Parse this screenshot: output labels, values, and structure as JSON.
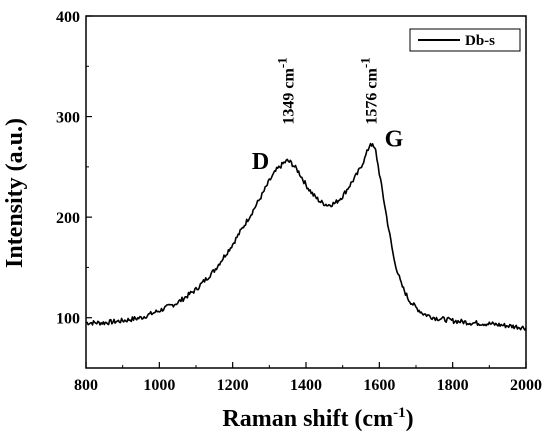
{
  "chart_data": {
    "type": "line",
    "title": "",
    "xlabel": "Raman shift (cm",
    "xlabel_sup": "-1",
    "xlabel_close": ")",
    "ylabel": "Intensity (a.u.)",
    "xlim": [
      800,
      2000
    ],
    "ylim": [
      50,
      400
    ],
    "x_ticks": [
      800,
      1000,
      1200,
      1400,
      1600,
      1800,
      2000
    ],
    "y_ticks": [
      100,
      200,
      300,
      400
    ],
    "x_tick_labels": [
      "800",
      "1000",
      "1200",
      "1400",
      "1600",
      "1800",
      "2000"
    ],
    "y_tick_labels": [
      "100",
      "200",
      "300",
      "400"
    ],
    "grid": false,
    "legend_position": "top-right",
    "line_color": "#000000",
    "series": [
      {
        "name": "Db-s",
        "x": [
          800,
          850,
          900,
          950,
          1000,
          1050,
          1100,
          1150,
          1200,
          1250,
          1280,
          1300,
          1320,
          1340,
          1349,
          1360,
          1380,
          1400,
          1420,
          1440,
          1460,
          1480,
          1500,
          1520,
          1540,
          1560,
          1576,
          1590,
          1600,
          1620,
          1640,
          1660,
          1680,
          1700,
          1720,
          1750,
          1800,
          1850,
          1900,
          1950,
          2000
        ],
        "y": [
          95,
          95,
          97,
          100,
          107,
          115,
          128,
          147,
          173,
          203,
          222,
          236,
          247,
          254,
          256,
          254,
          245,
          232,
          222,
          215,
          212,
          214,
          221,
          232,
          243,
          258,
          274,
          266,
          244,
          200,
          158,
          133,
          118,
          110,
          104,
          100,
          97,
          95,
          94,
          92,
          90
        ]
      }
    ],
    "annotations": [
      {
        "id": "d",
        "text": "D",
        "x": 1276,
        "y": 248
      },
      {
        "id": "g",
        "text": "G",
        "x": 1640,
        "y": 270
      },
      {
        "id": "d_pos",
        "text": "1349 cm",
        "sup": "-1",
        "x": 1349,
        "y": 292
      },
      {
        "id": "g_pos",
        "text": "1576 cm",
        "sup": "-1",
        "x": 1576,
        "y": 292
      }
    ]
  }
}
